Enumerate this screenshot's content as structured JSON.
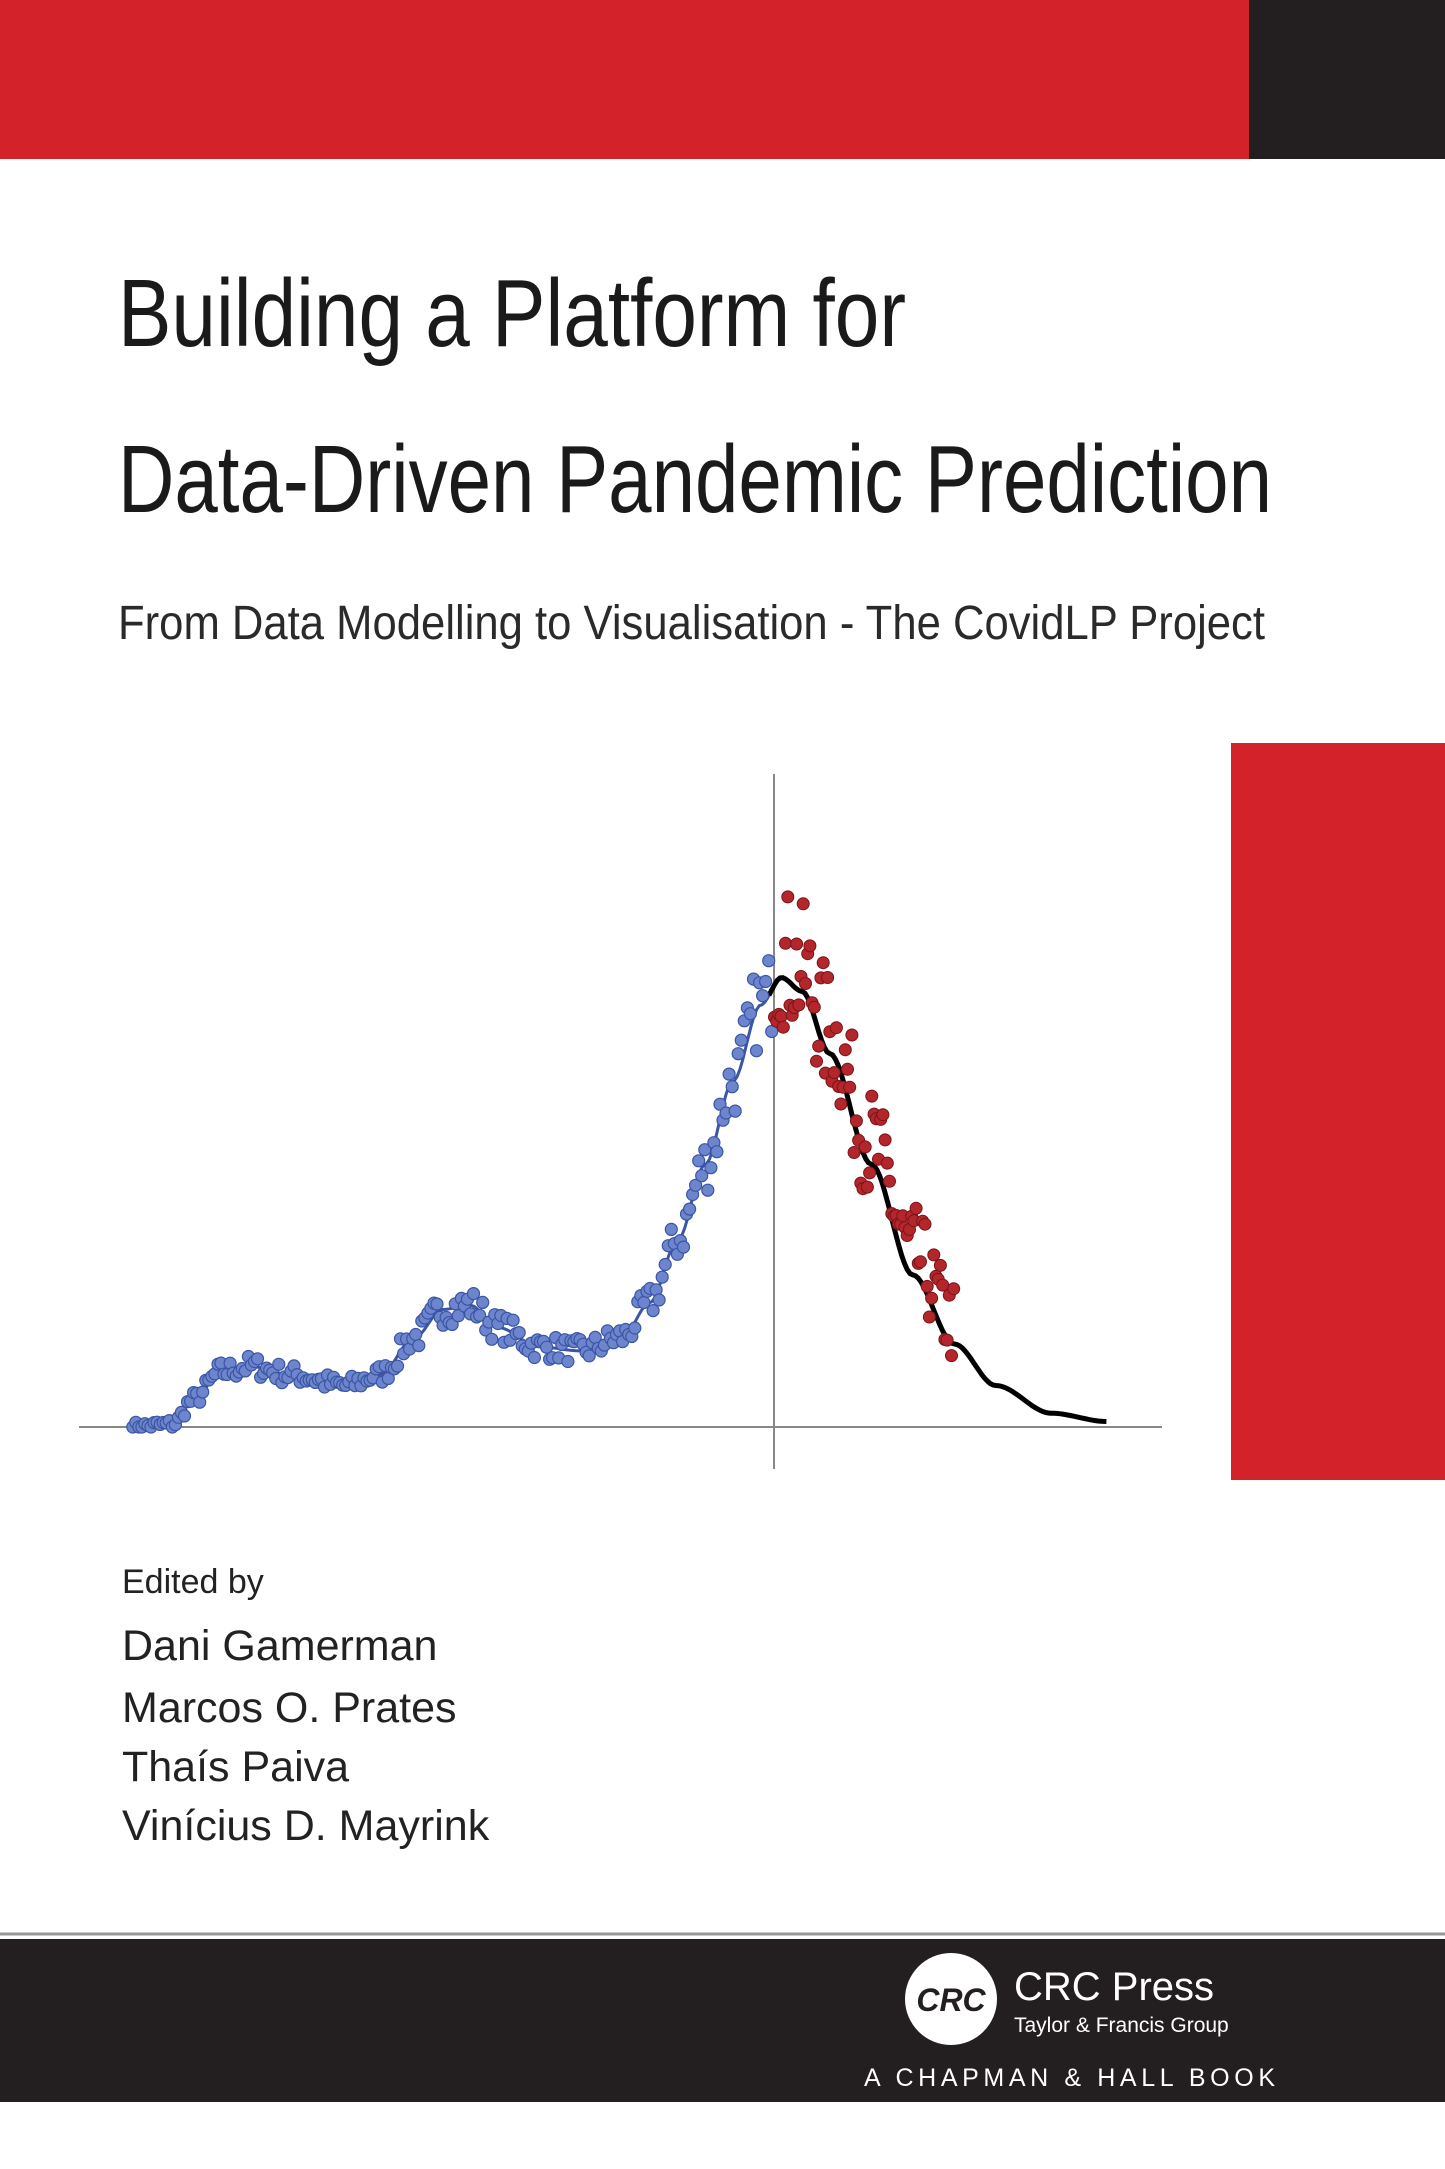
{
  "cover": {
    "title": [
      "Building a Platform for",
      "Data-Driven Pandemic Prediction"
    ],
    "subtitle": "From Data Modelling to Visualisation - The CovidLP Project",
    "editors_label": "Edited by",
    "editors": [
      "Dani Gamerman",
      "Marcos O. Prates",
      "Thaís Paiva",
      "Vinícius D. Mayrink"
    ],
    "publisher": {
      "logo": "CRC",
      "name": "CRC Press",
      "group": "Taylor & Francis Group",
      "imprint": "A CHAPMAN & HALL BOOK"
    }
  }
}
